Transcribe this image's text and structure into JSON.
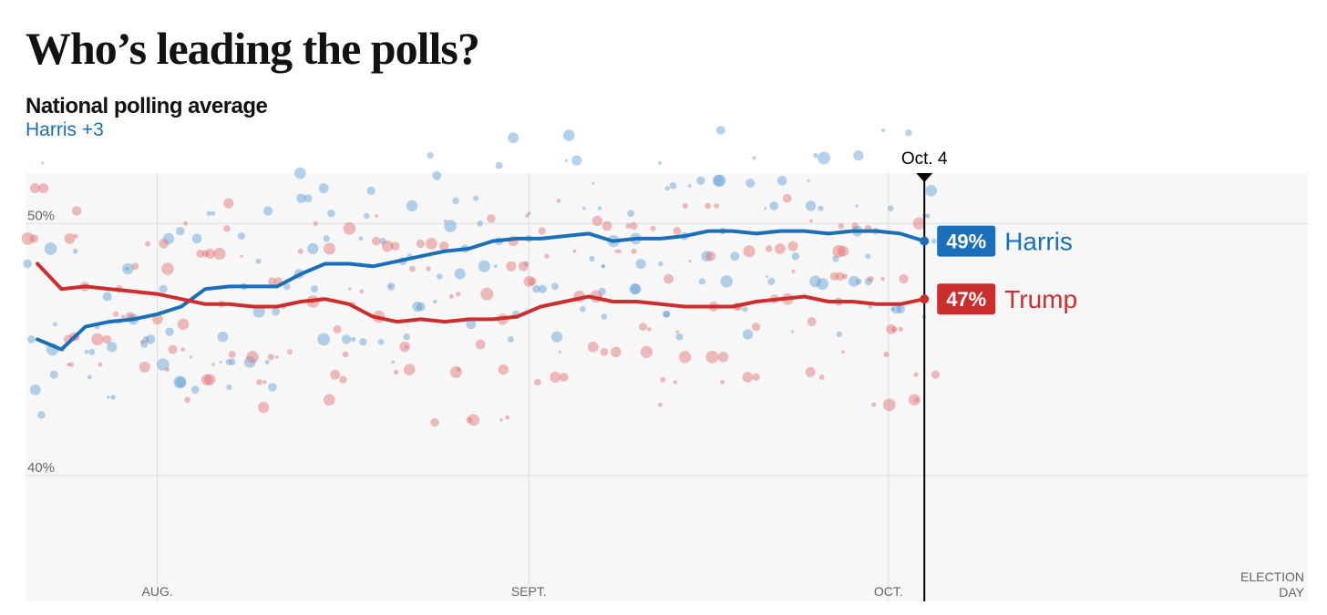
{
  "header": {
    "title": "Who’s leading the polls?",
    "subtitle": "National polling average",
    "leader": "Harris +3"
  },
  "colors": {
    "harris": "#1a6fb8",
    "trump": "#cc2d2d",
    "harris_dot": "#5b9bd5",
    "trump_dot": "#e06b6b",
    "plot_bg": "#f7f7f7",
    "grid": "#dddddd"
  },
  "chart_data": {
    "type": "line",
    "title": "Who’s leading the polls?",
    "subtitle": "National polling average",
    "xlabel": "",
    "ylabel": "",
    "x_range": [
      "2024-07-21",
      "2024-11-05"
    ],
    "ylim": [
      35,
      52
    ],
    "y_ticks": [
      {
        "value": 40,
        "label": "40%"
      },
      {
        "value": 50,
        "label": "50%"
      }
    ],
    "x_ticks": [
      {
        "date": "2024-08-01",
        "label": "AUG."
      },
      {
        "date": "2024-09-01",
        "label": "SEPT."
      },
      {
        "date": "2024-10-01",
        "label": "OCT."
      },
      {
        "date": "2024-11-05",
        "label": "ELECTION DAY"
      }
    ],
    "current_marker": {
      "date": "2024-10-04",
      "label": "Oct. 4"
    },
    "grid": true,
    "series": [
      {
        "name": "Harris",
        "label_value": "49%",
        "x": [
          "2024-07-22",
          "2024-07-24",
          "2024-07-26",
          "2024-07-28",
          "2024-07-30",
          "2024-08-01",
          "2024-08-03",
          "2024-08-05",
          "2024-08-07",
          "2024-08-09",
          "2024-08-11",
          "2024-08-13",
          "2024-08-15",
          "2024-08-17",
          "2024-08-19",
          "2024-08-21",
          "2024-08-23",
          "2024-08-25",
          "2024-08-27",
          "2024-08-29",
          "2024-08-31",
          "2024-09-02",
          "2024-09-04",
          "2024-09-06",
          "2024-09-08",
          "2024-09-10",
          "2024-09-12",
          "2024-09-14",
          "2024-09-16",
          "2024-09-18",
          "2024-09-20",
          "2024-09-22",
          "2024-09-24",
          "2024-09-26",
          "2024-09-28",
          "2024-09-30",
          "2024-10-02",
          "2024-10-04"
        ],
        "values": [
          45.4,
          45.0,
          45.9,
          46.1,
          46.2,
          46.4,
          46.7,
          47.4,
          47.5,
          47.5,
          47.5,
          48.0,
          48.4,
          48.4,
          48.3,
          48.5,
          48.7,
          48.9,
          49.0,
          49.3,
          49.4,
          49.4,
          49.5,
          49.6,
          49.3,
          49.4,
          49.4,
          49.5,
          49.7,
          49.7,
          49.6,
          49.7,
          49.7,
          49.6,
          49.7,
          49.7,
          49.6,
          49.3
        ]
      },
      {
        "name": "Trump",
        "label_value": "47%",
        "x": [
          "2024-07-22",
          "2024-07-24",
          "2024-07-26",
          "2024-07-28",
          "2024-07-30",
          "2024-08-01",
          "2024-08-03",
          "2024-08-05",
          "2024-08-07",
          "2024-08-09",
          "2024-08-11",
          "2024-08-13",
          "2024-08-15",
          "2024-08-17",
          "2024-08-19",
          "2024-08-21",
          "2024-08-23",
          "2024-08-25",
          "2024-08-27",
          "2024-08-29",
          "2024-08-31",
          "2024-09-02",
          "2024-09-04",
          "2024-09-06",
          "2024-09-08",
          "2024-09-10",
          "2024-09-12",
          "2024-09-14",
          "2024-09-16",
          "2024-09-18",
          "2024-09-20",
          "2024-09-22",
          "2024-09-24",
          "2024-09-26",
          "2024-09-28",
          "2024-09-30",
          "2024-10-02",
          "2024-10-04"
        ],
        "values": [
          48.4,
          47.4,
          47.5,
          47.4,
          47.3,
          47.2,
          47.0,
          46.8,
          46.8,
          46.7,
          46.7,
          46.9,
          47.0,
          46.8,
          46.3,
          46.1,
          46.2,
          46.1,
          46.2,
          46.2,
          46.3,
          46.7,
          46.9,
          47.1,
          46.9,
          46.9,
          46.8,
          46.7,
          46.7,
          46.7,
          46.9,
          47.0,
          47.1,
          46.9,
          46.9,
          46.8,
          46.8,
          47.0
        ]
      }
    ]
  }
}
